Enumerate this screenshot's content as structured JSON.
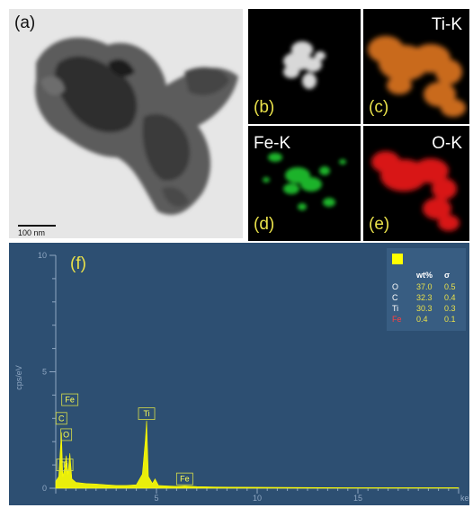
{
  "panels": {
    "a": {
      "label": "(a)",
      "scalebar": "100 nm"
    },
    "b": {
      "label": "(b)"
    },
    "c": {
      "label": "(c)",
      "element": "Ti-K"
    },
    "d": {
      "label": "(d)",
      "element": "Fe-K"
    },
    "e": {
      "label": "(e)",
      "element": "O-K"
    }
  },
  "colors": {
    "label_light": "#ffffff",
    "label_dark": "#111111",
    "label_yellow": "#e8e04a",
    "ti_map": "#c96a1b",
    "fe_map": "#1fb32b",
    "o_map": "#d81616",
    "spectrum_bg": "#2d4f72",
    "spectrum_line": "#ffff00"
  },
  "chart_data": {
    "type": "line",
    "panel_label": "(f)",
    "title": "",
    "xlabel": "keV",
    "ylabel": "cps/eV",
    "xlim": [
      0,
      20
    ],
    "ylim": [
      0,
      10
    ],
    "yticks": [
      "0",
      "5",
      "10"
    ],
    "xticks": [
      "5",
      "10",
      "15"
    ],
    "grid": false,
    "series": [
      {
        "x": [
          0.0,
          0.15,
          0.28,
          0.35,
          0.45,
          0.52,
          0.6,
          0.7,
          0.8,
          1.0,
          1.5,
          2.0,
          2.5,
          3.0,
          3.5,
          4.0,
          4.3,
          4.45,
          4.51,
          4.6,
          4.8,
          4.93,
          5.1,
          5.5,
          6.0,
          6.4,
          7.0,
          8.0,
          10.0,
          12.0,
          15.0,
          20.0
        ],
        "y": [
          0.3,
          0.5,
          2.4,
          0.5,
          0.9,
          1.4,
          0.6,
          1.5,
          0.4,
          0.25,
          0.2,
          0.18,
          0.15,
          0.12,
          0.12,
          0.15,
          0.6,
          2.1,
          2.9,
          0.5,
          0.2,
          0.4,
          0.12,
          0.1,
          0.08,
          0.1,
          0.07,
          0.05,
          0.04,
          0.03,
          0.02,
          0.02
        ]
      }
    ],
    "peak_labels": [
      {
        "label": "Fe",
        "x": 0.7,
        "y": 3.8
      },
      {
        "label": "C",
        "x": 0.28,
        "y": 3.0
      },
      {
        "label": "O",
        "x": 0.52,
        "y": 2.3
      },
      {
        "label": "Ti",
        "x": 0.45,
        "y": 1.0
      },
      {
        "label": "Ti",
        "x": 4.51,
        "y": 3.2
      },
      {
        "label": "Fe",
        "x": 6.4,
        "y": 0.4
      }
    ],
    "table": {
      "headers": [
        "",
        "wt%",
        "σ"
      ],
      "rows": [
        {
          "element": "O",
          "wt": "37.0",
          "sigma": "0.5",
          "color": "#ffffff"
        },
        {
          "element": "C",
          "wt": "32.3",
          "sigma": "0.4",
          "color": "#ffffff"
        },
        {
          "element": "Ti",
          "wt": "30.3",
          "sigma": "0.3",
          "color": "#ffffff"
        },
        {
          "element": "Fe",
          "wt": "0.4",
          "sigma": "0.1",
          "color": "#ff4040"
        }
      ]
    }
  }
}
